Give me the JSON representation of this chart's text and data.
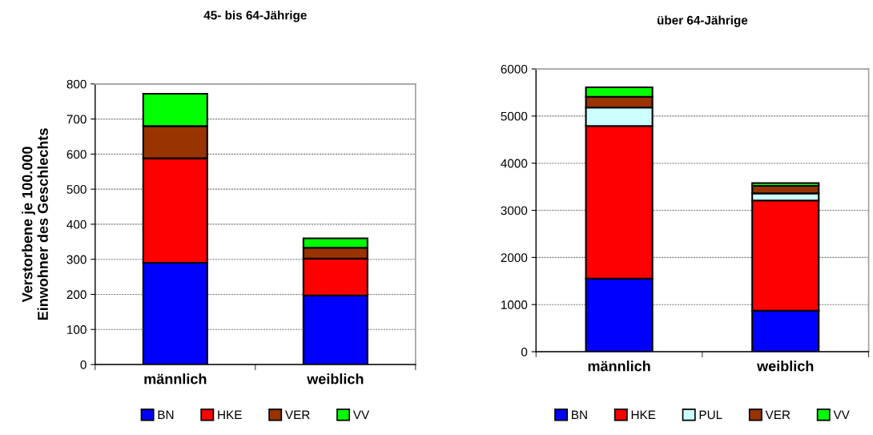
{
  "chart_data": [
    {
      "type": "bar",
      "title": "45- bis 64-Jährige",
      "ylabel": "Verstorbene je 100.000\nEinwohner des Geschlechts",
      "categories": [
        "männlich",
        "weiblich"
      ],
      "stacked": true,
      "series": [
        {
          "name": "BN",
          "color": "#0000ff",
          "values": [
            290,
            197
          ]
        },
        {
          "name": "HKE",
          "color": "#ff0000",
          "values": [
            298,
            105
          ]
        },
        {
          "name": "VER",
          "color": "#993300",
          "values": [
            92,
            31
          ]
        },
        {
          "name": "VV",
          "color": "#00ff00",
          "values": [
            92,
            27
          ]
        }
      ],
      "ylim": [
        0,
        800
      ],
      "yticks": [
        0,
        100,
        200,
        300,
        400,
        500,
        600,
        700,
        800
      ],
      "grid": "y",
      "legend": "bottom"
    },
    {
      "type": "bar",
      "title": "über 64-Jährige",
      "categories": [
        "männlich",
        "weiblich"
      ],
      "stacked": true,
      "series": [
        {
          "name": "BN",
          "color": "#0000ff",
          "values": [
            1550,
            870
          ]
        },
        {
          "name": "HKE",
          "color": "#ff0000",
          "values": [
            3240,
            2340
          ]
        },
        {
          "name": "PUL",
          "color": "#ccffff",
          "values": [
            390,
            150
          ]
        },
        {
          "name": "VER",
          "color": "#993300",
          "values": [
            230,
            160
          ]
        },
        {
          "name": "VV",
          "color": "#00ff00",
          "values": [
            200,
            60
          ]
        }
      ],
      "ylim": [
        0,
        6000
      ],
      "yticks": [
        0,
        1000,
        2000,
        3000,
        4000,
        5000,
        6000
      ],
      "grid": "y",
      "legend": "bottom"
    }
  ]
}
